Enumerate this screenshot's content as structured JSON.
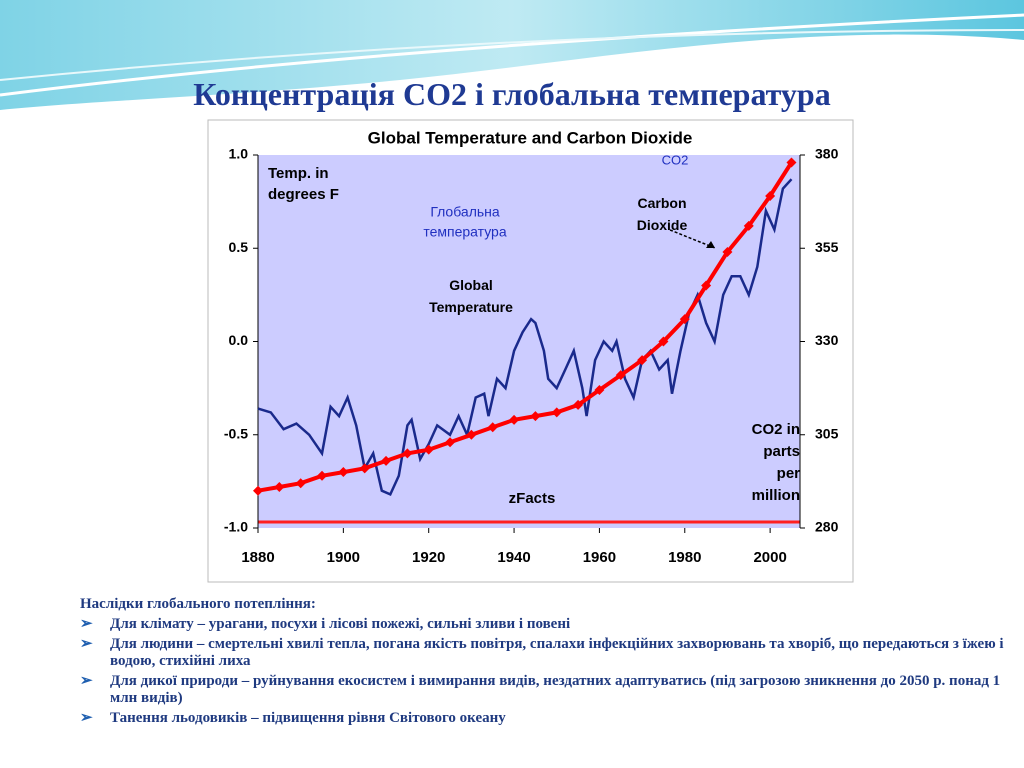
{
  "slide_title": "Концентрація CO2 і глобальна температура",
  "chart_data": {
    "type": "line",
    "title": "Global Temperature and Carbon Dioxide",
    "ylabel": [
      "Temp. in",
      "degrees F"
    ],
    "y2label": [
      "CO2 in",
      "parts",
      "per",
      "million"
    ],
    "annotations": {
      "source": "zFacts",
      "temp_ua": [
        "Глобальна",
        "температура"
      ],
      "co2_ua": "CO2"
    },
    "xlim": [
      1880,
      2007
    ],
    "xticks": [
      1880,
      1900,
      1920,
      1940,
      1960,
      1980,
      2000
    ],
    "ylim": [
      -1.0,
      1.0
    ],
    "yticks": [
      {
        "value": -1.0,
        "label": "-1.0"
      },
      {
        "value": -0.5,
        "label": "-0.5"
      },
      {
        "value": 0.0,
        "label": "0.0"
      },
      {
        "value": 0.5,
        "label": "0.5"
      },
      {
        "value": 1.0,
        "label": "1.0"
      }
    ],
    "y2lim": [
      280,
      380
    ],
    "y2ticks": [
      280,
      305,
      330,
      355,
      380
    ],
    "series": [
      {
        "name": "Global Temperature",
        "color": "#1a2a8c",
        "x": [
          1880,
          1883,
          1886,
          1889,
          1892,
          1895,
          1897,
          1899,
          1901,
          1903,
          1905,
          1907,
          1909,
          1911,
          1913,
          1915,
          1916,
          1918,
          1920,
          1922,
          1925,
          1927,
          1929,
          1931,
          1933,
          1934,
          1936,
          1938,
          1940,
          1942,
          1944,
          1945,
          1947,
          1948,
          1950,
          1952,
          1954,
          1956,
          1957,
          1959,
          1961,
          1963,
          1964,
          1966,
          1968,
          1970,
          1972,
          1974,
          1976,
          1977,
          1979,
          1981,
          1983,
          1985,
          1987,
          1989,
          1991,
          1993,
          1995,
          1997,
          1999,
          2001,
          2003,
          2005
        ],
        "values": [
          -0.36,
          -0.38,
          -0.47,
          -0.44,
          -0.5,
          -0.6,
          -0.35,
          -0.4,
          -0.3,
          -0.45,
          -0.68,
          -0.6,
          -0.8,
          -0.82,
          -0.72,
          -0.45,
          -0.42,
          -0.63,
          -0.55,
          -0.45,
          -0.5,
          -0.4,
          -0.5,
          -0.3,
          -0.28,
          -0.4,
          -0.2,
          -0.25,
          -0.05,
          0.05,
          0.12,
          0.1,
          -0.05,
          -0.2,
          -0.25,
          -0.15,
          -0.05,
          -0.25,
          -0.4,
          -0.1,
          0.0,
          -0.05,
          0.0,
          -0.2,
          -0.3,
          -0.1,
          -0.05,
          -0.15,
          -0.1,
          -0.28,
          -0.05,
          0.15,
          0.25,
          0.1,
          0.0,
          0.25,
          0.35,
          0.35,
          0.25,
          0.4,
          0.7,
          0.6,
          0.82,
          0.87
        ]
      },
      {
        "name": "Carbon Dioxide",
        "color": "#ff0000",
        "axis": "y2",
        "x": [
          1880,
          1885,
          1890,
          1895,
          1900,
          1905,
          1910,
          1915,
          1920,
          1925,
          1930,
          1935,
          1940,
          1945,
          1950,
          1955,
          1960,
          1965,
          1970,
          1975,
          1980,
          1985,
          1990,
          1995,
          2000,
          2005
        ],
        "values": [
          290,
          291,
          292,
          294,
          295,
          296,
          298,
          300,
          301,
          303,
          305,
          307,
          309,
          310,
          311,
          313,
          317,
          321,
          325,
          330,
          336,
          345,
          354,
          361,
          369,
          378
        ]
      }
    ]
  },
  "consequences": {
    "heading": "Наслідки глобального потепління:",
    "items": [
      "Для клімату – урагани, посухи і лісові пожежі, сильні зливи і повені",
      "Для людини – смертельні хвилі тепла, погана якість повітря, спалахи інфекційних захворювань та хворіб, що передаються з їжею і водою, стихійні лиха",
      "Для дикої природи – руйнування екосистем і вимирання видів, нездатних адаптуватись (під загрозою зникнення до 2050 р. понад 1 млн видів)",
      "Танення льодовиків – підвищення рівня Світового океану"
    ]
  }
}
